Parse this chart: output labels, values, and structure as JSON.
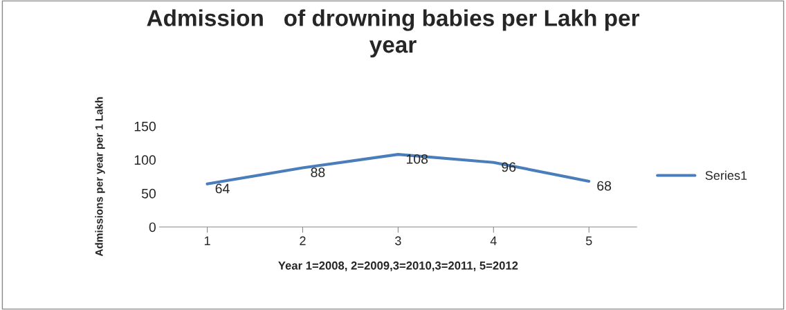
{
  "chart_data": {
    "type": "line",
    "title": "Admission   of drowning babies per Lakh per\nyear",
    "xlabel": "Year 1=2008, 2=2009,3=2010,3=2011, 5=2012",
    "ylabel": "Admissions per year per 1 Lakh",
    "categories": [
      "1",
      "2",
      "3",
      "4",
      "5"
    ],
    "series": [
      {
        "name": "Series1",
        "color": "#4a7ebb",
        "values": [
          64,
          88,
          108,
          96,
          68
        ]
      }
    ],
    "ylim": [
      0,
      150
    ],
    "yticks": [
      0,
      50,
      100,
      150
    ],
    "grid": false,
    "legend": "right",
    "data_labels": true,
    "marker": "none",
    "line_style": "solid"
  }
}
